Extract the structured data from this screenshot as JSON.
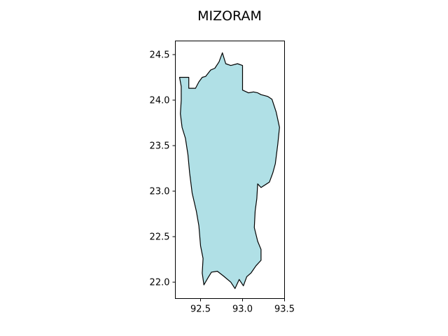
{
  "title": "MIZORAM",
  "chart_data": {
    "type": "map",
    "title": "MIZORAM",
    "xlabel": "",
    "ylabel": "",
    "xlim": [
      92.2,
      93.5
    ],
    "ylim": [
      21.82,
      24.65
    ],
    "x_ticks": [
      {
        "value": 92.5,
        "label": "92.5"
      },
      {
        "value": 93.0,
        "label": "93.0"
      },
      {
        "value": 93.5,
        "label": "93.5"
      }
    ],
    "y_ticks": [
      {
        "value": 22.0,
        "label": "22.0"
      },
      {
        "value": 22.5,
        "label": "22.5"
      },
      {
        "value": 23.0,
        "label": "23.0"
      },
      {
        "value": 23.5,
        "label": "23.5"
      },
      {
        "value": 24.0,
        "label": "24.0"
      },
      {
        "value": 24.5,
        "label": "24.5"
      }
    ],
    "grid": false,
    "fill_color": "#b0e0e6",
    "edge_color": "#000000",
    "boundary": [
      [
        92.25,
        24.25
      ],
      [
        92.36,
        24.25
      ],
      [
        92.36,
        24.13
      ],
      [
        92.44,
        24.13
      ],
      [
        92.48,
        24.2
      ],
      [
        92.52,
        24.25
      ],
      [
        92.56,
        24.26
      ],
      [
        92.62,
        24.33
      ],
      [
        92.67,
        24.35
      ],
      [
        92.72,
        24.42
      ],
      [
        92.76,
        24.52
      ],
      [
        92.8,
        24.4
      ],
      [
        92.86,
        24.38
      ],
      [
        92.94,
        24.4
      ],
      [
        93.0,
        24.38
      ],
      [
        93.0,
        24.22
      ],
      [
        93.0,
        24.11
      ],
      [
        93.07,
        24.08
      ],
      [
        93.13,
        24.09
      ],
      [
        93.18,
        24.08
      ],
      [
        93.22,
        24.06
      ],
      [
        93.3,
        24.04
      ],
      [
        93.35,
        24.01
      ],
      [
        93.4,
        23.87
      ],
      [
        93.44,
        23.7
      ],
      [
        93.42,
        23.52
      ],
      [
        93.39,
        23.3
      ],
      [
        93.36,
        23.2
      ],
      [
        93.32,
        23.1
      ],
      [
        93.22,
        23.04
      ],
      [
        93.18,
        23.08
      ],
      [
        93.17,
        22.92
      ],
      [
        93.15,
        22.78
      ],
      [
        93.14,
        22.6
      ],
      [
        93.18,
        22.45
      ],
      [
        93.22,
        22.36
      ],
      [
        93.22,
        22.24
      ],
      [
        93.16,
        22.18
      ],
      [
        93.1,
        22.1
      ],
      [
        93.05,
        22.06
      ],
      [
        93.01,
        21.96
      ],
      [
        92.96,
        22.03
      ],
      [
        92.91,
        21.93
      ],
      [
        92.86,
        22.0
      ],
      [
        92.77,
        22.07
      ],
      [
        92.7,
        22.12
      ],
      [
        92.63,
        22.11
      ],
      [
        92.59,
        22.05
      ],
      [
        92.54,
        21.97
      ],
      [
        92.52,
        22.1
      ],
      [
        92.53,
        22.26
      ],
      [
        92.5,
        22.4
      ],
      [
        92.48,
        22.62
      ],
      [
        92.45,
        22.78
      ],
      [
        92.4,
        22.98
      ],
      [
        92.37,
        23.2
      ],
      [
        92.35,
        23.4
      ],
      [
        92.32,
        23.58
      ],
      [
        92.28,
        23.7
      ],
      [
        92.26,
        23.85
      ],
      [
        92.27,
        24.0
      ],
      [
        92.27,
        24.15
      ],
      [
        92.25,
        24.25
      ]
    ]
  }
}
